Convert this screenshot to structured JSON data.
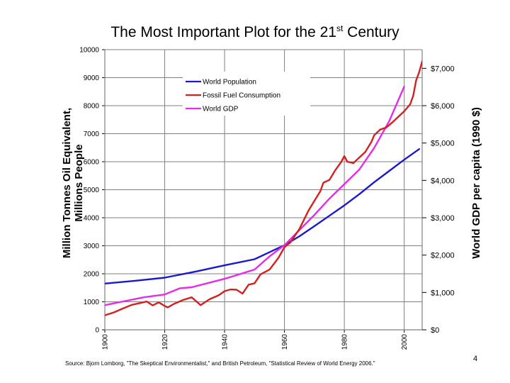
{
  "slide": {
    "title_main": "The Most Important Plot for the 21",
    "title_sup": "st",
    "title_tail": " Century",
    "source": "Source: Bjorn Lomborg, \"The Skeptical Environmentalist,\" and British Petroleum, \"Statistical Review of World Energy 2006.\"",
    "page_number": "4"
  },
  "chart_data": {
    "type": "line",
    "ylabel_left": [
      "Million Tonnes Oil Equivalent,",
      "Millions People"
    ],
    "ylabel_right": "World GDP per capita (1990 $)",
    "xlim": [
      1900,
      2006
    ],
    "ylim": [
      0,
      10000
    ],
    "ylim_right": [
      0,
      7500
    ],
    "x_ticks": [
      "1900",
      "1920",
      "1940",
      "1960",
      "1980",
      "2000"
    ],
    "y_ticks": [
      "0",
      "1000",
      "2000",
      "3000",
      "4000",
      "5000",
      "6000",
      "7000",
      "8000",
      "9000",
      "10000"
    ],
    "y_right_ticks": [
      "$0",
      "$1,000",
      "$2,000",
      "$3,000",
      "$4,000",
      "$5,000",
      "$6,000",
      "$7,000"
    ],
    "grid": true,
    "legend_position": "top-center",
    "series": [
      {
        "name": "World Population",
        "color": "#1a1acc",
        "axis": "left",
        "x": [
          1900,
          1910,
          1920,
          1930,
          1940,
          1950,
          1955,
          1960,
          1965,
          1970,
          1975,
          1980,
          1985,
          1990,
          1995,
          2000,
          2005
        ],
        "y": [
          1650,
          1750,
          1860,
          2070,
          2300,
          2520,
          2770,
          3020,
          3340,
          3700,
          4070,
          4440,
          4840,
          5270,
          5670,
          6070,
          6450
        ]
      },
      {
        "name": "Fossil Fuel Consumption",
        "color": "#d42020",
        "axis": "left",
        "x": [
          1900,
          1903,
          1906,
          1909,
          1912,
          1914,
          1916,
          1918,
          1920,
          1921,
          1923,
          1926,
          1929,
          1932,
          1935,
          1938,
          1940,
          1942,
          1944,
          1946,
          1948,
          1950,
          1952,
          1955,
          1958,
          1960,
          1962,
          1965,
          1968,
          1970,
          1972,
          1973,
          1975,
          1977,
          1979,
          1980,
          1981,
          1983,
          1985,
          1987,
          1989,
          1990,
          1992,
          1994,
          1996,
          1998,
          2000,
          2002,
          2003,
          2004,
          2005,
          2006
        ],
        "y": [
          520,
          620,
          760,
          890,
          960,
          1010,
          870,
          980,
          850,
          800,
          920,
          1060,
          1160,
          880,
          1090,
          1230,
          1380,
          1440,
          1430,
          1290,
          1610,
          1660,
          1980,
          2150,
          2570,
          2950,
          3120,
          3600,
          4250,
          4600,
          4950,
          5250,
          5350,
          5700,
          6000,
          6200,
          6000,
          5950,
          6150,
          6350,
          6700,
          6950,
          7150,
          7220,
          7400,
          7600,
          7800,
          8050,
          8350,
          8900,
          9200,
          9580
        ]
      },
      {
        "name": "World GDP",
        "color": "#e62ae6",
        "axis": "left",
        "x": [
          1900,
          1913,
          1920,
          1925,
          1929,
          1940,
          1950,
          1955,
          1960,
          1965,
          1970,
          1975,
          1980,
          1985,
          1990,
          1995,
          2000
        ],
        "y": [
          880,
          1160,
          1260,
          1480,
          1520,
          1820,
          2150,
          2620,
          3020,
          3560,
          4100,
          4680,
          5200,
          5720,
          6500,
          7450,
          8680
        ]
      }
    ]
  }
}
